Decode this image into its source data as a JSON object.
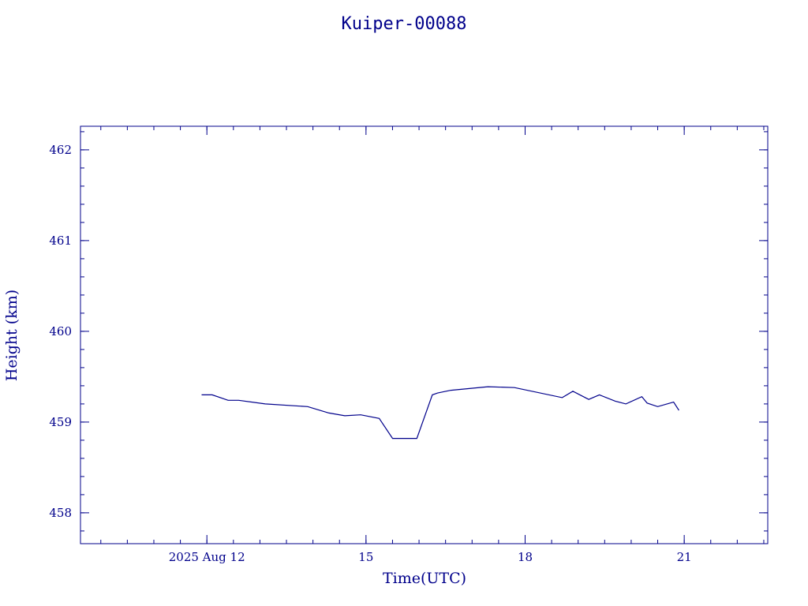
{
  "chart_data": {
    "type": "line",
    "title": "Kuiper-00088",
    "xlabel": "Time(UTC)",
    "ylabel": "Height (km)",
    "x_axis_type": "time",
    "xlim": [
      "2025-08-09T14:48",
      "2025-08-22T13:48"
    ],
    "ylim": [
      457.66,
      462.26
    ],
    "x_ticks": [
      {
        "date": "2025-08-12",
        "label": "2025 Aug 12"
      },
      {
        "date": "2025-08-15",
        "label": "15"
      },
      {
        "date": "2025-08-18",
        "label": "18"
      },
      {
        "date": "2025-08-21",
        "label": "21"
      }
    ],
    "x_minor_tick_days": 0.5,
    "y_ticks": [
      458,
      459,
      460,
      461,
      462
    ],
    "y_minor_step": 0.2,
    "grid": false,
    "legend": "none",
    "color": "#00008b",
    "series": [
      {
        "x": [
          "2025-08-11T21:36",
          "2025-08-12T02:24",
          "2025-08-12T09:36",
          "2025-08-12T14:24",
          "2025-08-13T02:24",
          "2025-08-13T21:36",
          "2025-08-14T07:12",
          "2025-08-14T14:24",
          "2025-08-14T21:36",
          "2025-08-15T06:00",
          "2025-08-15T12:00",
          "2025-08-15T23:00",
          "2025-08-16T06:00",
          "2025-08-16T06:00",
          "2025-08-16T08:24",
          "2025-08-16T14:24",
          "2025-08-17T07:12",
          "2025-08-17T19:12",
          "2025-08-18T16:48",
          "2025-08-18T21:36",
          "2025-08-19T04:48",
          "2025-08-19T09:36",
          "2025-08-19T16:48",
          "2025-08-19T21:36",
          "2025-08-20T04:48",
          "2025-08-20T07:12",
          "2025-08-20T12:00",
          "2025-08-20T19:12",
          "2025-08-20T21:36"
        ],
        "y": [
          459.3,
          459.3,
          459.24,
          459.24,
          459.2,
          459.17,
          459.1,
          459.07,
          459.08,
          459.04,
          458.82,
          458.82,
          459.3,
          459.3,
          459.32,
          459.35,
          459.39,
          459.38,
          459.27,
          459.34,
          459.25,
          459.3,
          459.23,
          459.2,
          459.28,
          459.21,
          459.17,
          459.22,
          459.13
        ]
      }
    ]
  }
}
